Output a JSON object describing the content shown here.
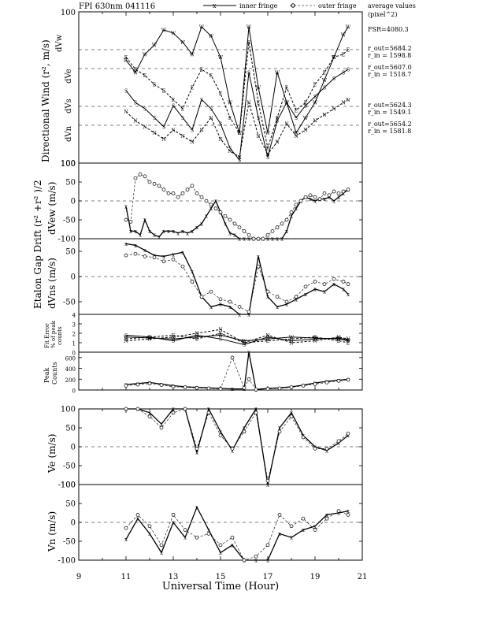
{
  "header": {
    "title": "FPI 630nm 041116",
    "legend_inner": "inner fringe",
    "legend_outer": "outer fringe",
    "avg_title_1": "average values",
    "avg_title_2": "(pixel^2)"
  },
  "params": {
    "fsr": "FSR=4080.3",
    "vw_out": "r_out=5684.2",
    "vw_in": "r_in = 1598.8",
    "ve_out": "r_out=5607.0",
    "ve_in": "r_in = 1518.7",
    "vs_out": "r_out=5624.3",
    "vs_in": "r_in = 1549.1",
    "vn_out": "r_out=5654.2",
    "vn_in": "r_in = 1581.8"
  },
  "labels": {
    "wind_ylabel": "Directional Wind  (r², m/s)",
    "dvw": "dVw",
    "dve": "dVe",
    "dvs": "dVs",
    "dvn": "dVn",
    "drift_ylabel": "Etalon Gap Drift  (r² +r² )/2",
    "dvew": "dVew (m/s)",
    "dvns": "dVns (m/s)",
    "fit_1": "Fit Error",
    "fit_2": "% of peak",
    "fit_3": "counts",
    "peak_1": "Peak",
    "peak_2": "Counts",
    "ve_label": "Ve (m/s)",
    "vn_label": "Vn (m/s)",
    "xlabel": "Universal Time (Hour)"
  },
  "ticks": {
    "wind": [
      "100",
      "100"
    ],
    "drift_ew": [
      "100",
      "50",
      "0",
      "-50",
      "-100"
    ],
    "drift_ns": [
      "50",
      "0",
      "-50"
    ],
    "fit": [
      "4",
      "3",
      "2",
      "1",
      "0"
    ],
    "peak": [
      "600",
      "400",
      "200",
      "0"
    ],
    "ve": [
      "100",
      "50",
      "0",
      "-50",
      "-100"
    ],
    "vn": [
      "100",
      "50",
      "0",
      "-50",
      "-100"
    ],
    "x": [
      "9",
      "11",
      "13",
      "15",
      "17",
      "19",
      "21"
    ]
  },
  "chart_data": [
    {
      "type": "line",
      "panel": "directional_wind",
      "ylabel": "Directional Wind (r², m/s)",
      "series": [
        {
          "name": "dVw",
          "x": [
            11.0,
            11.4,
            11.8,
            12.2,
            12.6,
            13.0,
            13.4,
            13.8,
            14.2,
            14.6,
            15.0,
            15.4,
            15.8,
            16.2,
            16.6,
            17.0,
            17.4,
            17.8,
            18.2,
            18.6,
            19.0,
            19.4,
            19.8,
            20.2,
            20.4
          ],
          "y": [
            68,
            60,
            72,
            78,
            88,
            86,
            80,
            72,
            90,
            84,
            70,
            40,
            20,
            90,
            50,
            20,
            60,
            40,
            20,
            30,
            40,
            55,
            70,
            85,
            90
          ]
        },
        {
          "name": "dVe",
          "x": [
            11.0,
            11.4,
            11.8,
            12.2,
            12.6,
            13.0,
            13.4,
            13.8,
            14.2,
            14.6,
            15.0,
            15.4,
            15.8,
            16.2,
            16.6,
            17.0,
            17.4,
            17.8,
            18.2,
            18.6,
            19.0,
            19.4,
            19.8,
            20.2,
            20.4
          ],
          "y": [
            70,
            62,
            58,
            52,
            48,
            42,
            36,
            50,
            62,
            58,
            46,
            30,
            20,
            80,
            40,
            10,
            30,
            50,
            35,
            40,
            52,
            60,
            70,
            72,
            75
          ]
        },
        {
          "name": "dVs",
          "x": [
            11.0,
            11.4,
            11.8,
            12.2,
            12.6,
            13.0,
            13.4,
            13.8,
            14.2,
            14.6,
            15.0,
            15.4,
            15.8,
            16.2,
            16.6,
            17.0,
            17.4,
            17.8,
            18.2,
            18.6,
            19.0,
            19.4,
            19.8,
            20.2,
            20.4
          ],
          "y": [
            48,
            40,
            36,
            30,
            24,
            38,
            30,
            22,
            42,
            36,
            26,
            10,
            2,
            60,
            30,
            4,
            28,
            40,
            30,
            38,
            44,
            50,
            56,
            60,
            62
          ]
        },
        {
          "name": "dVn",
          "x": [
            11.0,
            11.4,
            11.8,
            12.2,
            12.6,
            13.0,
            13.4,
            13.8,
            14.2,
            14.6,
            15.0,
            15.4,
            15.8,
            16.2,
            16.6,
            17.0,
            17.4,
            17.8,
            18.2,
            18.6,
            19.0,
            19.4,
            19.8,
            20.2,
            20.4
          ],
          "y": [
            34,
            28,
            24,
            20,
            16,
            22,
            18,
            14,
            22,
            30,
            16,
            8,
            4,
            40,
            18,
            6,
            14,
            26,
            18,
            22,
            28,
            32,
            36,
            40,
            42
          ]
        }
      ]
    },
    {
      "type": "line",
      "panel": "dVew",
      "ylabel": "dVew (m/s)",
      "ylim": [
        -100,
        100
      ],
      "series": [
        {
          "name": "inner fringe",
          "x": [
            11.0,
            11.2,
            11.4,
            11.6,
            11.8,
            12.0,
            12.2,
            12.4,
            12.6,
            12.8,
            13.0,
            13.2,
            13.4,
            13.6,
            13.8,
            14.0,
            14.2,
            14.4,
            14.6,
            14.8,
            15.0,
            15.2,
            15.4,
            15.6,
            15.8,
            16.0,
            16.2,
            16.4,
            16.6,
            16.8,
            17.0,
            17.2,
            17.4,
            17.6,
            17.8,
            18.0,
            18.2,
            18.4,
            18.6,
            18.8,
            19.0,
            19.2,
            19.4,
            19.6,
            19.8,
            20.0,
            20.2,
            20.4
          ],
          "y": [
            -15,
            -80,
            -80,
            -90,
            -50,
            -80,
            -90,
            -95,
            -80,
            -80,
            -80,
            -85,
            -80,
            -85,
            -80,
            -70,
            -60,
            -40,
            -20,
            0,
            -30,
            -60,
            -85,
            -90,
            -100,
            -100,
            -100,
            -100,
            -100,
            -100,
            -100,
            -100,
            -100,
            -100,
            -80,
            -40,
            -20,
            0,
            10,
            5,
            0,
            5,
            5,
            10,
            0,
            10,
            20,
            30
          ]
        },
        {
          "name": "outer fringe",
          "x": [
            11.0,
            11.2,
            11.4,
            11.6,
            11.8,
            12.0,
            12.2,
            12.4,
            12.6,
            12.8,
            13.0,
            13.2,
            13.4,
            13.6,
            13.8,
            14.0,
            14.2,
            14.4,
            14.6,
            14.8,
            15.0,
            15.2,
            15.4,
            15.6,
            15.8,
            16.0,
            16.2,
            16.4,
            16.6,
            16.8,
            17.0,
            17.2,
            17.4,
            17.6,
            17.8,
            18.0,
            18.2,
            18.4,
            18.6,
            18.8,
            19.0,
            19.2,
            19.4,
            19.6,
            19.8,
            20.0,
            20.2,
            20.4
          ],
          "y": [
            -50,
            -55,
            60,
            70,
            65,
            50,
            45,
            40,
            30,
            20,
            20,
            10,
            20,
            30,
            40,
            20,
            10,
            0,
            -10,
            -20,
            -30,
            -40,
            -50,
            -60,
            -70,
            -80,
            -90,
            -100,
            -100,
            -100,
            -90,
            -80,
            -70,
            -60,
            -50,
            -30,
            -10,
            0,
            10,
            15,
            10,
            5,
            20,
            15,
            25,
            20,
            25,
            30
          ]
        }
      ]
    },
    {
      "type": "line",
      "panel": "dVns",
      "ylabel": "dVns (m/s)",
      "ylim": [
        -75,
        75
      ],
      "series": [
        {
          "name": "inner fringe",
          "x": [
            11.0,
            11.4,
            11.8,
            12.2,
            12.6,
            13.0,
            13.4,
            13.8,
            14.2,
            14.6,
            15.0,
            15.4,
            15.8,
            16.2,
            16.6,
            17.0,
            17.4,
            17.8,
            18.2,
            18.6,
            19.0,
            19.4,
            19.8,
            20.2,
            20.4
          ],
          "y": [
            65,
            62,
            52,
            42,
            40,
            44,
            48,
            10,
            -40,
            -60,
            -55,
            -60,
            -75,
            -75,
            40,
            -40,
            -60,
            -55,
            -45,
            -35,
            -25,
            -30,
            -15,
            -25,
            -35
          ]
        },
        {
          "name": "outer fringe",
          "x": [
            11.0,
            11.4,
            11.8,
            12.2,
            12.6,
            13.0,
            13.4,
            13.8,
            14.2,
            14.6,
            15.0,
            15.4,
            15.8,
            16.2,
            16.6,
            17.0,
            17.4,
            17.8,
            18.2,
            18.6,
            19.0,
            19.4,
            19.8,
            20.2,
            20.4
          ],
          "y": [
            42,
            45,
            40,
            38,
            30,
            34,
            20,
            -10,
            -40,
            -30,
            -45,
            -50,
            -60,
            -70,
            20,
            -30,
            -40,
            -50,
            -40,
            -20,
            -10,
            -15,
            -5,
            -10,
            -15
          ]
        }
      ]
    },
    {
      "type": "line",
      "panel": "fit_error",
      "ylabel": "Fit Error % of peak counts",
      "ylim": [
        0,
        4
      ],
      "series": [
        {
          "name": "dVw",
          "x": [
            11.0,
            12.0,
            13.0,
            14.0,
            15.0,
            16.0,
            17.0,
            18.0,
            19.0,
            20.0,
            20.4
          ],
          "y": [
            1.6,
            1.5,
            1.4,
            1.6,
            1.8,
            1.2,
            1.4,
            1.6,
            1.5,
            1.4,
            1.2
          ]
        },
        {
          "name": "dVe",
          "x": [
            11.0,
            12.0,
            13.0,
            14.0,
            15.0,
            16.0,
            17.0,
            18.0,
            19.0,
            20.0,
            20.4
          ],
          "y": [
            1.4,
            1.6,
            1.8,
            1.4,
            2.0,
            1.0,
            1.2,
            1.4,
            1.6,
            1.2,
            1.0
          ]
        },
        {
          "name": "dVs",
          "x": [
            11.0,
            12.0,
            13.0,
            14.0,
            15.0,
            16.0,
            17.0,
            18.0,
            19.0,
            20.0,
            20.4
          ],
          "y": [
            1.8,
            1.6,
            1.2,
            1.8,
            1.4,
            0.8,
            1.6,
            1.2,
            1.4,
            1.5,
            1.3
          ]
        },
        {
          "name": "dVn",
          "x": [
            11.0,
            12.0,
            13.0,
            14.0,
            15.0,
            16.0,
            17.0,
            18.0,
            19.0,
            20.0,
            20.4
          ],
          "y": [
            1.2,
            1.4,
            1.6,
            2.0,
            2.4,
            1.0,
            1.8,
            1.0,
            1.2,
            1.6,
            1.4
          ]
        }
      ]
    },
    {
      "type": "line",
      "panel": "peak_counts",
      "ylabel": "Peak Counts",
      "ylim": [
        0,
        700
      ],
      "series": [
        {
          "name": "inner fringe",
          "x": [
            11.0,
            11.5,
            12.0,
            12.5,
            13.0,
            13.5,
            14.0,
            14.5,
            15.0,
            15.5,
            16.0,
            16.2,
            16.5,
            17.0,
            17.5,
            18.0,
            18.5,
            19.0,
            19.5,
            20.0,
            20.4
          ],
          "y": [
            100,
            120,
            140,
            110,
            80,
            60,
            50,
            40,
            30,
            20,
            20,
            700,
            10,
            30,
            40,
            60,
            90,
            130,
            160,
            180,
            200
          ]
        },
        {
          "name": "outer fringe",
          "x": [
            11.0,
            11.5,
            12.0,
            12.5,
            13.0,
            13.5,
            14.0,
            14.5,
            15.0,
            15.5,
            16.0,
            16.2,
            16.5,
            17.0,
            17.5,
            18.0,
            18.5,
            19.0,
            19.5,
            20.0,
            20.4
          ],
          "y": [
            80,
            100,
            120,
            90,
            60,
            50,
            40,
            30,
            20,
            600,
            40,
            200,
            10,
            20,
            30,
            50,
            80,
            110,
            140,
            170,
            190
          ]
        }
      ]
    },
    {
      "type": "line",
      "panel": "Ve",
      "ylabel": "Ve (m/s)",
      "ylim": [
        -100,
        100
      ],
      "series": [
        {
          "name": "inner fringe",
          "x": [
            11.0,
            11.5,
            12.0,
            12.5,
            13.0,
            13.5,
            14.0,
            14.5,
            15.0,
            15.5,
            16.0,
            16.5,
            17.0,
            17.5,
            18.0,
            18.5,
            19.0,
            19.5,
            20.0,
            20.4
          ],
          "y": [
            110,
            120,
            90,
            60,
            100,
            110,
            -15,
            100,
            40,
            -10,
            50,
            100,
            -100,
            50,
            90,
            30,
            0,
            -10,
            10,
            30
          ]
        },
        {
          "name": "outer fringe",
          "x": [
            11.0,
            11.5,
            12.0,
            12.5,
            13.0,
            13.5,
            14.0,
            14.5,
            15.0,
            15.5,
            16.0,
            16.5,
            17.0,
            17.5,
            18.0,
            18.5,
            19.0,
            19.5,
            20.0,
            20.4
          ],
          "y": [
            100,
            110,
            80,
            50,
            90,
            100,
            -5,
            90,
            30,
            -5,
            40,
            90,
            -90,
            40,
            80,
            25,
            -5,
            -5,
            15,
            35
          ]
        }
      ]
    },
    {
      "type": "line",
      "panel": "Vn",
      "ylabel": "Vn (m/s)",
      "ylim": [
        -100,
        100
      ],
      "series": [
        {
          "name": "inner fringe",
          "x": [
            11.0,
            11.5,
            12.0,
            12.5,
            13.0,
            13.5,
            14.0,
            14.5,
            15.0,
            15.5,
            16.0,
            16.5,
            17.0,
            17.5,
            18.0,
            18.5,
            19.0,
            19.5,
            20.0,
            20.4
          ],
          "y": [
            -45,
            10,
            -30,
            -80,
            0,
            -40,
            40,
            -20,
            -80,
            -60,
            -100,
            -100,
            -100,
            -30,
            -40,
            -20,
            -10,
            20,
            25,
            30
          ]
        },
        {
          "name": "outer fringe",
          "x": [
            11.0,
            11.5,
            12.0,
            12.5,
            13.0,
            13.5,
            14.0,
            14.5,
            15.0,
            15.5,
            16.0,
            16.5,
            17.0,
            17.5,
            18.0,
            18.5,
            19.0,
            19.5,
            20.0,
            20.4
          ],
          "y": [
            -15,
            20,
            -10,
            -60,
            20,
            -20,
            -40,
            -30,
            -60,
            -40,
            -100,
            -90,
            -60,
            20,
            -10,
            10,
            -20,
            10,
            30,
            20
          ]
        }
      ]
    }
  ]
}
